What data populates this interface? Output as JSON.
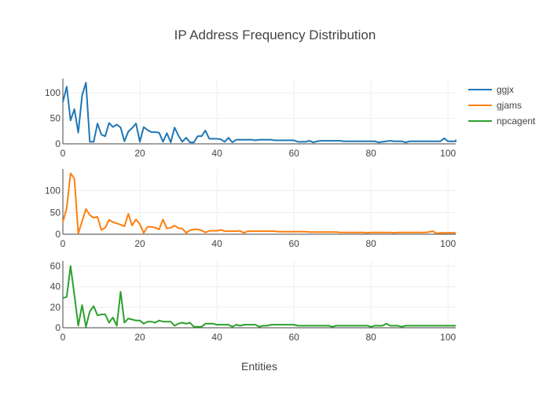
{
  "chart_data": {
    "type": "line",
    "title": "IP Address Frequency Distribution",
    "xlabel": "Entities",
    "xlim": [
      0,
      102
    ],
    "xticks": [
      0,
      20,
      40,
      60,
      80,
      100
    ],
    "grid": true,
    "legend_position": "top-right",
    "subplots": [
      {
        "series": {
          "name": "ggjx",
          "color": "#1f77b4",
          "values": [
            82,
            112,
            46,
            68,
            22,
            95,
            120,
            4,
            4,
            40,
            18,
            15,
            41,
            33,
            38,
            32,
            5,
            24,
            31,
            40,
            4,
            33,
            27,
            23,
            23,
            22,
            4,
            21,
            3,
            32,
            16,
            4,
            12,
            3,
            3,
            15,
            15,
            26,
            10,
            10,
            10,
            9,
            4,
            12,
            3,
            8,
            8,
            8,
            8,
            8,
            7,
            8,
            8,
            8,
            8,
            7,
            7,
            7,
            7,
            7,
            7,
            4,
            4,
            4,
            6,
            3,
            5,
            6,
            6,
            6,
            6,
            6,
            6,
            5,
            5,
            5,
            5,
            5,
            5,
            5,
            5,
            5,
            3,
            4,
            5,
            6,
            5,
            5,
            5,
            3,
            5,
            5,
            5,
            5,
            5,
            5,
            5,
            5,
            5,
            11,
            5,
            5,
            5,
            5,
            5,
            5,
            8
          ]
        },
        "ylim": [
          0,
          128
        ],
        "yticks": [
          0,
          50,
          100
        ]
      },
      {
        "series": {
          "name": "gjams",
          "color": "#ff7f0e",
          "values": [
            28,
            60,
            140,
            128,
            2,
            30,
            58,
            44,
            38,
            40,
            10,
            15,
            33,
            28,
            25,
            22,
            18,
            47,
            20,
            34,
            23,
            3,
            17,
            17,
            15,
            11,
            34,
            13,
            15,
            20,
            14,
            13,
            3,
            9,
            11,
            11,
            9,
            4,
            8,
            8,
            8,
            10,
            7,
            7,
            7,
            7,
            8,
            3,
            7,
            7,
            7,
            7,
            7,
            7,
            7,
            7,
            6,
            6,
            6,
            6,
            6,
            6,
            6,
            6,
            5,
            5,
            5,
            5,
            5,
            5,
            5,
            5,
            4,
            4,
            4,
            4,
            4,
            4,
            4,
            3,
            4,
            4,
            4,
            4,
            4,
            4,
            3,
            4,
            4,
            4,
            4,
            4,
            4,
            4,
            4,
            5,
            7,
            2,
            3,
            3,
            3,
            3,
            3,
            3
          ]
        },
        "ylim": [
          0,
          150
        ],
        "yticks": [
          0,
          50,
          100
        ]
      },
      {
        "series": {
          "name": "npcagent",
          "color": "#2ca02c",
          "values": [
            29,
            30,
            60,
            32,
            2,
            22,
            1,
            16,
            21,
            12,
            13,
            13,
            5,
            10,
            2,
            35,
            5,
            9,
            8,
            7,
            7,
            4,
            6,
            6,
            5,
            7,
            6,
            6,
            6,
            2,
            4,
            5,
            4,
            5,
            1,
            1,
            1,
            4,
            4,
            4,
            3,
            3,
            3,
            3,
            1,
            3,
            2,
            3,
            3,
            3,
            3,
            1,
            2,
            2,
            3,
            3,
            3,
            3,
            3,
            3,
            3,
            2,
            2,
            2,
            2,
            2,
            2,
            2,
            2,
            2,
            1,
            2,
            2,
            2,
            2,
            2,
            2,
            2,
            2,
            2,
            1,
            2,
            2,
            2,
            4,
            2,
            2,
            2,
            1,
            2,
            2,
            2,
            2,
            2,
            2,
            2,
            2,
            2,
            2,
            2,
            2,
            2,
            2,
            2
          ]
        },
        "ylim": [
          0,
          65
        ],
        "yticks": [
          0,
          20,
          40,
          60
        ]
      }
    ]
  }
}
